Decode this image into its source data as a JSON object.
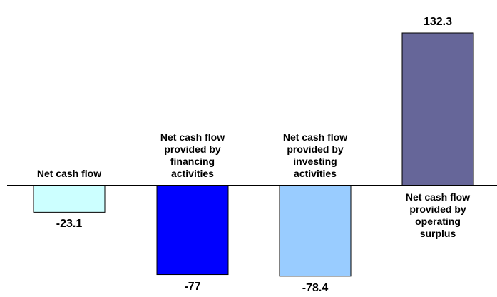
{
  "chart_data": {
    "type": "bar",
    "categories": [
      "Net cash flow",
      "Net cash flow provided by financing activities",
      "Net cash flow provided by investing activities",
      "Net cash flow provided by operating surplus"
    ],
    "values": [
      -23.1,
      -77,
      -78.4,
      132.3
    ],
    "colors": [
      "#ccffff",
      "#0000ff",
      "#99ccff",
      "#666699"
    ]
  }
}
